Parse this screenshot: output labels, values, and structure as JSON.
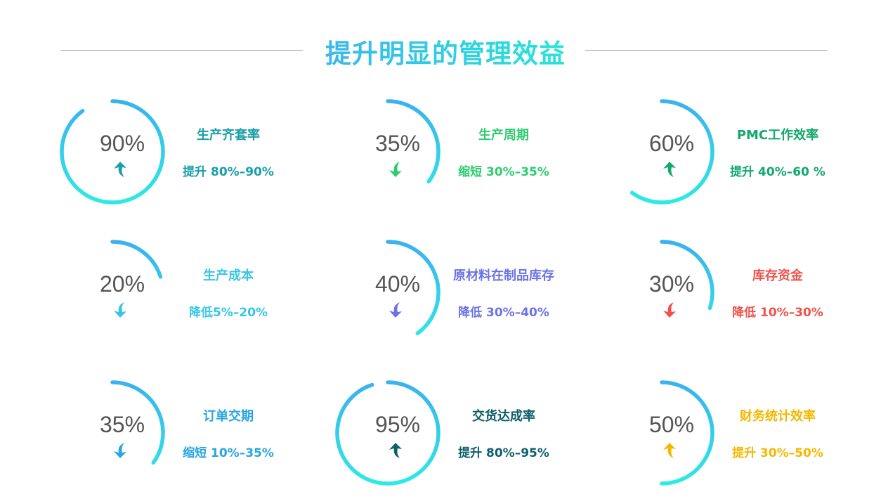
{
  "title": "提升明显的管理效益",
  "items": [
    {
      "name": "生产齐套率",
      "value": 90,
      "label": "90%",
      "direction": "up",
      "desc": "提升 80%–90%",
      "color": "#1a9ea8"
    },
    {
      "name": "生产周期",
      "value": 35,
      "label": "35%",
      "direction": "down",
      "desc": "缩短 30%–35%",
      "color": "#2ecc71"
    },
    {
      "name": "PMC工作效率",
      "value": 60,
      "label": "60%",
      "direction": "up",
      "desc": "提升 40%–60 %",
      "color": "#12a86e"
    },
    {
      "name": "生产成本",
      "value": 20,
      "label": "20%",
      "direction": "down",
      "desc": "降低5%–20%",
      "color": "#38c6e6"
    },
    {
      "name": "原材料在制品库存",
      "value": 40,
      "label": "40%",
      "direction": "down",
      "desc": "降低 30%–40%",
      "color": "#6b73e6"
    },
    {
      "name": "库存资金",
      "value": 30,
      "label": "30%",
      "direction": "down",
      "desc": "降低 10%–30%",
      "color": "#f0524a"
    },
    {
      "name": "订单交期",
      "value": 35,
      "label": "35%",
      "direction": "down",
      "desc": "缩短 10%–35%",
      "color": "#2aa6e0"
    },
    {
      "name": "交货达成率",
      "value": 95,
      "label": "95%",
      "direction": "up",
      "desc": "提升 80%–95%",
      "color": "#0e5f6a"
    },
    {
      "name": "财务统计效率",
      "value": 50,
      "label": "50%",
      "direction": "up",
      "desc": "提升 30%–50%",
      "color": "#f5b800"
    }
  ],
  "ring_colors": {
    "top": "#3ab2ee",
    "bottom": "#2eeae4"
  }
}
